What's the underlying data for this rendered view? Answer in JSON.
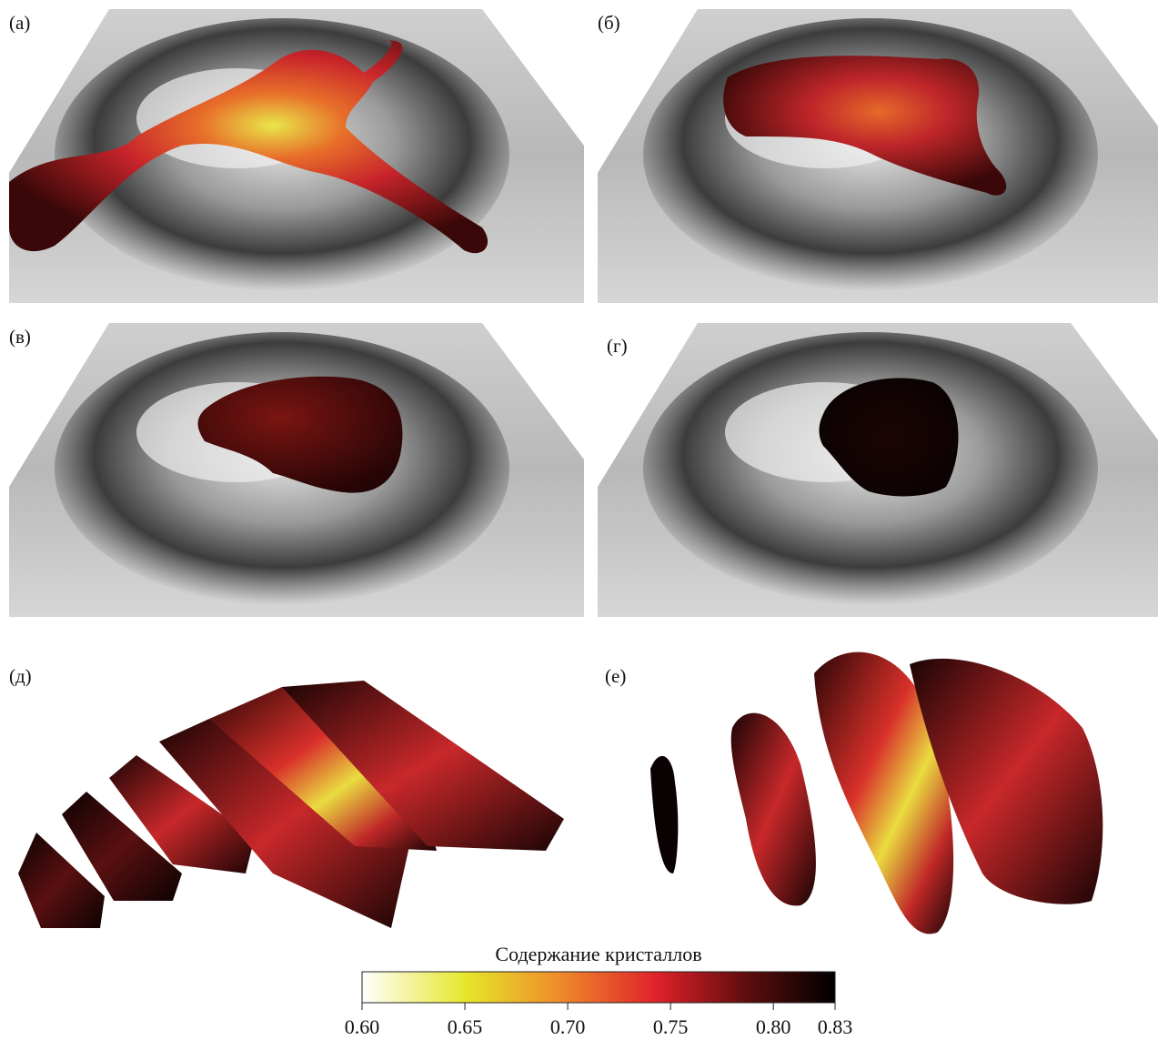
{
  "panels": [
    {
      "label": "(а)"
    },
    {
      "label": "(б)"
    },
    {
      "label": "(в)"
    },
    {
      "label": "(г)"
    },
    {
      "label": "(д)"
    },
    {
      "label": "(е)"
    }
  ],
  "colorbar": {
    "title": "Содержание кристаллов",
    "range": [
      0.6,
      0.83
    ],
    "ticks": [
      {
        "value": 0.6,
        "label": "0.60"
      },
      0.65,
      {
        "value": 0.7,
        "label": "0.70"
      },
      0.75,
      {
        "value": 0.8,
        "label": "0.80"
      },
      0.83
    ]
  }
}
